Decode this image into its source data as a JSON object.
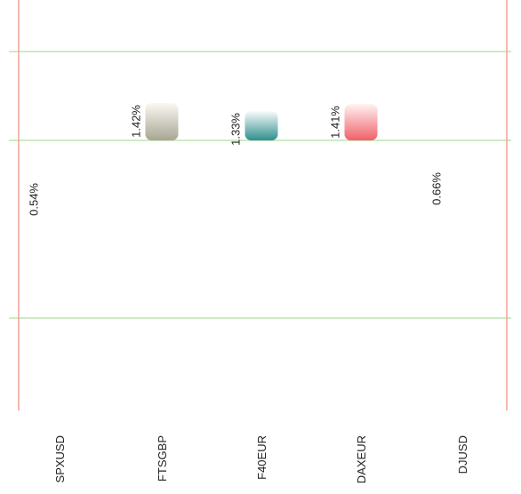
{
  "chart_data": {
    "type": "bar",
    "orientation": "vertical",
    "categories": [
      "SPXUSD",
      "FTSGBP",
      "F40EUR",
      "DAXEUR",
      "DJUSD"
    ],
    "values": [
      0.54,
      1.42,
      1.33,
      1.41,
      0.66
    ],
    "value_labels": [
      "0.54%",
      "1.42%",
      "1.33%",
      "1.41%",
      "0.66%"
    ],
    "value_unit": "%",
    "ylim": [
      -3,
      2
    ],
    "gridlines_y": [
      2,
      1,
      -1
    ],
    "baseline": 1,
    "grid": true,
    "legend": "none",
    "title": "",
    "xlabel": "",
    "ylabel": "",
    "colors": {
      "gridline": "#bfe3b0",
      "frame": "#f0a89a",
      "bar_gradients": [
        [
          "#fff6e4",
          "#f5b14a"
        ],
        [
          "#faf8f2",
          "#a8a692"
        ],
        [
          "#fafcfb",
          "#2e8f8e"
        ],
        [
          "#fff3f3",
          "#ef6168"
        ],
        [
          "#f7fdfd",
          "#a5ecea"
        ]
      ]
    }
  }
}
